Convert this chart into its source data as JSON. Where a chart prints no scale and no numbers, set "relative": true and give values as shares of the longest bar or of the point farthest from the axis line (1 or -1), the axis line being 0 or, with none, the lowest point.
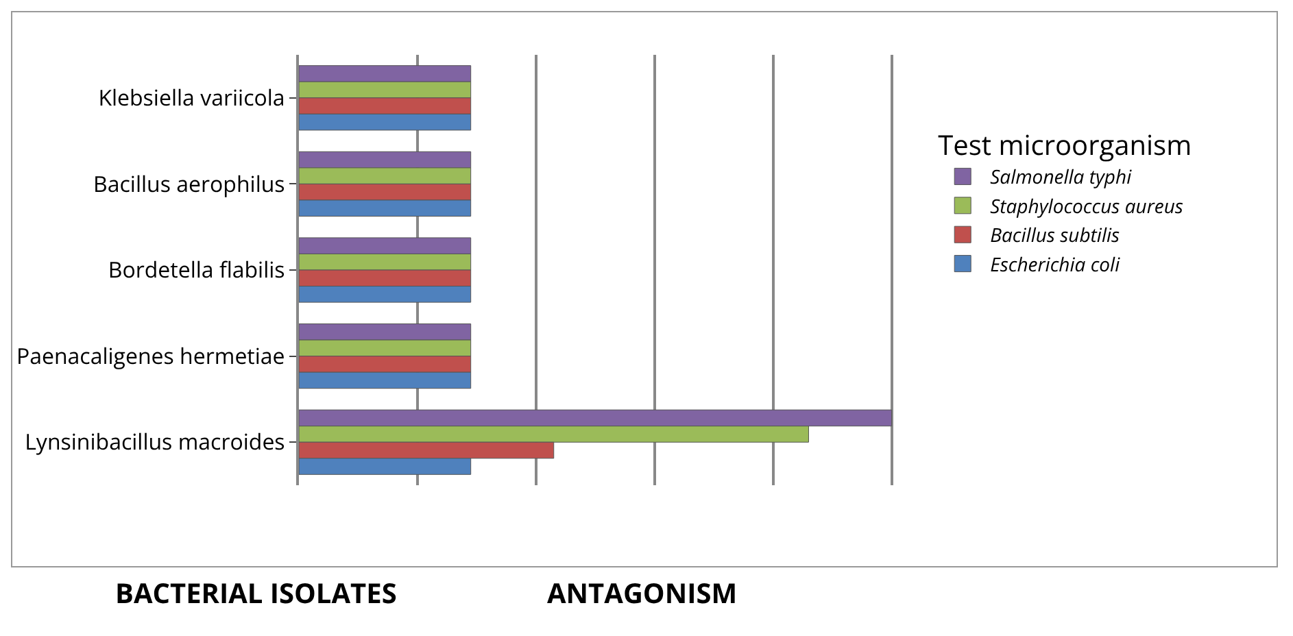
{
  "chart_data": {
    "type": "bar",
    "orientation": "horizontal",
    "relative": true,
    "grid": "x",
    "legend": "right",
    "legend_title": "Test microorganism",
    "categories": [
      "Klebsiella variicola",
      "Bacillus aerophilus",
      "Bordetella flabilis",
      "Paenacaligenes hermetiae",
      "Lynsinibacillus macroides"
    ],
    "series": [
      {
        "name": "Salmonella typhi",
        "color": "#8064a2",
        "values": [
          0.29,
          0.29,
          0.29,
          0.29,
          1
        ]
      },
      {
        "name": "Staphylococcus aureus",
        "color": "#9bbb59",
        "values": [
          0.29,
          0.29,
          0.29,
          0.29,
          0.86
        ]
      },
      {
        "name": "Bacillus subtilis",
        "color": "#c0504d",
        "values": [
          0.29,
          0.29,
          0.29,
          0.29,
          0.43
        ]
      },
      {
        "name": "Escherichia coli",
        "color": "#4f81bd",
        "values": [
          0.29,
          0.29,
          0.29,
          0.29,
          0.29
        ]
      }
    ],
    "annotations": [
      "BACTERIAL ISOLATES",
      "ANTAGONISM"
    ]
  }
}
